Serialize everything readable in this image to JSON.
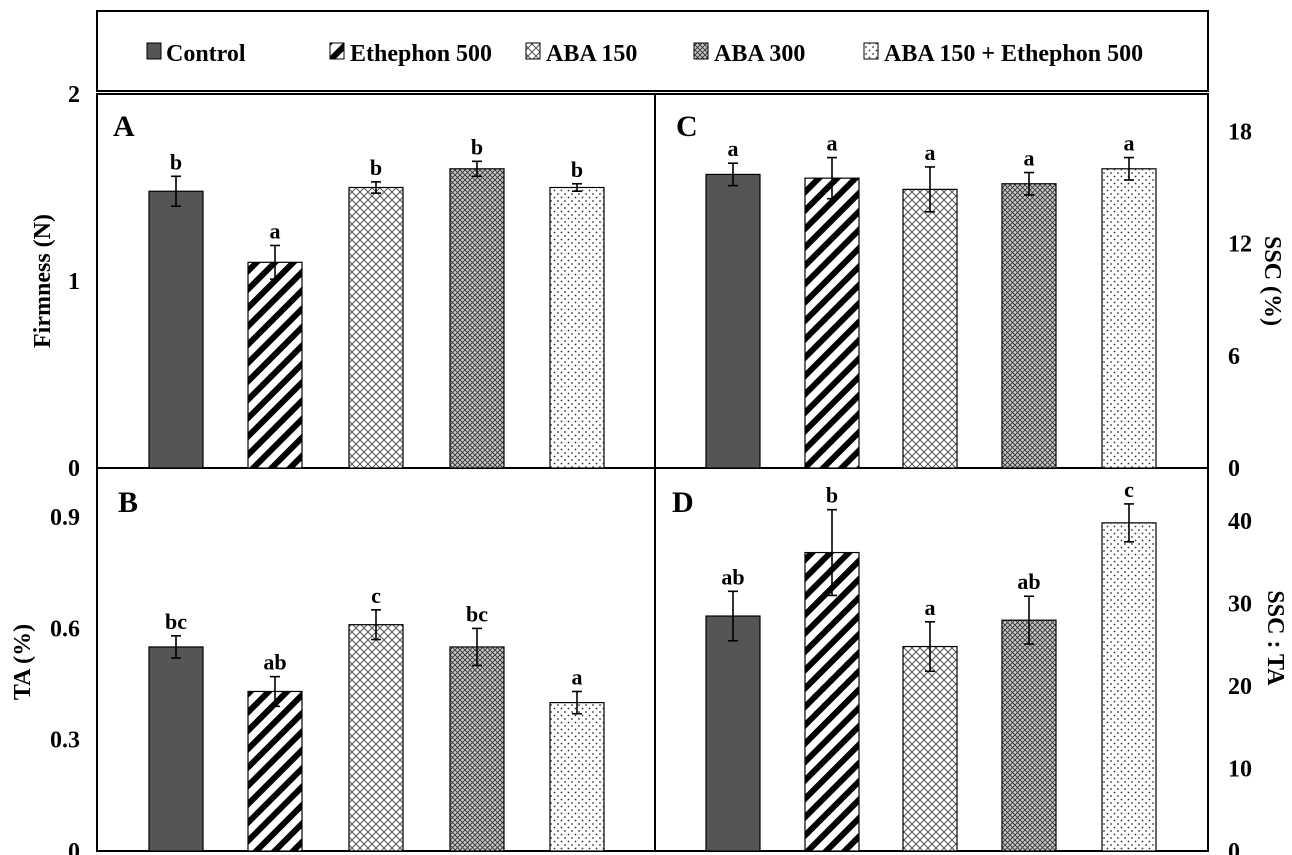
{
  "chart_data": {
    "legend": {
      "placement": "top",
      "entries": [
        "Control",
        "Ethephon 500",
        "ABA 150",
        "ABA 300",
        "ABA 150 + Ethephon 500"
      ]
    },
    "categories": [
      "Control",
      "Ethephon 500",
      "ABA 150",
      "ABA 300",
      "ABA 150 + Ethephon 500"
    ],
    "colors": {
      "control": "#555555",
      "stroke": "#000000",
      "background": "#ffffff"
    },
    "panels": [
      {
        "id": "A",
        "type": "bar",
        "ylabel": "Firmness (N)",
        "yaxis_side": "left",
        "ylim": [
          0,
          2
        ],
        "yticks": [
          "0",
          "1",
          "2"
        ],
        "values": [
          1.48,
          1.1,
          1.5,
          1.6,
          1.5
        ],
        "errors": [
          0.08,
          0.09,
          0.03,
          0.04,
          0.02
        ],
        "letters": [
          "b",
          "a",
          "b",
          "b",
          "b"
        ]
      },
      {
        "id": "B",
        "type": "bar",
        "ylabel": "TA (%)",
        "yaxis_side": "left",
        "ylim": [
          0,
          1.0
        ],
        "yticks": [
          "0",
          "0.3",
          "0.6",
          "0.9"
        ],
        "values": [
          0.55,
          0.43,
          0.61,
          0.55,
          0.4
        ],
        "errors": [
          0.03,
          0.04,
          0.04,
          0.05,
          0.03
        ],
        "letters": [
          "bc",
          "ab",
          "c",
          "bc",
          "a"
        ]
      },
      {
        "id": "C",
        "type": "bar",
        "ylabel": "SSC (%)",
        "yaxis_side": "right",
        "ylim": [
          0,
          20
        ],
        "yticks": [
          "0",
          "6",
          "12",
          "18"
        ],
        "values": [
          15.7,
          15.5,
          14.9,
          15.2,
          16.0
        ],
        "errors": [
          0.6,
          1.1,
          1.2,
          0.6,
          0.6
        ],
        "letters": [
          "a",
          "a",
          "a",
          "a",
          "a"
        ]
      },
      {
        "id": "D",
        "type": "bar",
        "ylabel": "SSC : TA",
        "yaxis_side": "right",
        "ylim": [
          0,
          45
        ],
        "yticks": [
          "0",
          "10",
          "20",
          "30",
          "40"
        ],
        "values": [
          28.5,
          36.2,
          24.8,
          28.0,
          39.8
        ],
        "errors": [
          3.0,
          5.2,
          3.0,
          2.9,
          2.3
        ],
        "letters": [
          "ab",
          "b",
          "a",
          "ab",
          "c"
        ]
      }
    ]
  }
}
